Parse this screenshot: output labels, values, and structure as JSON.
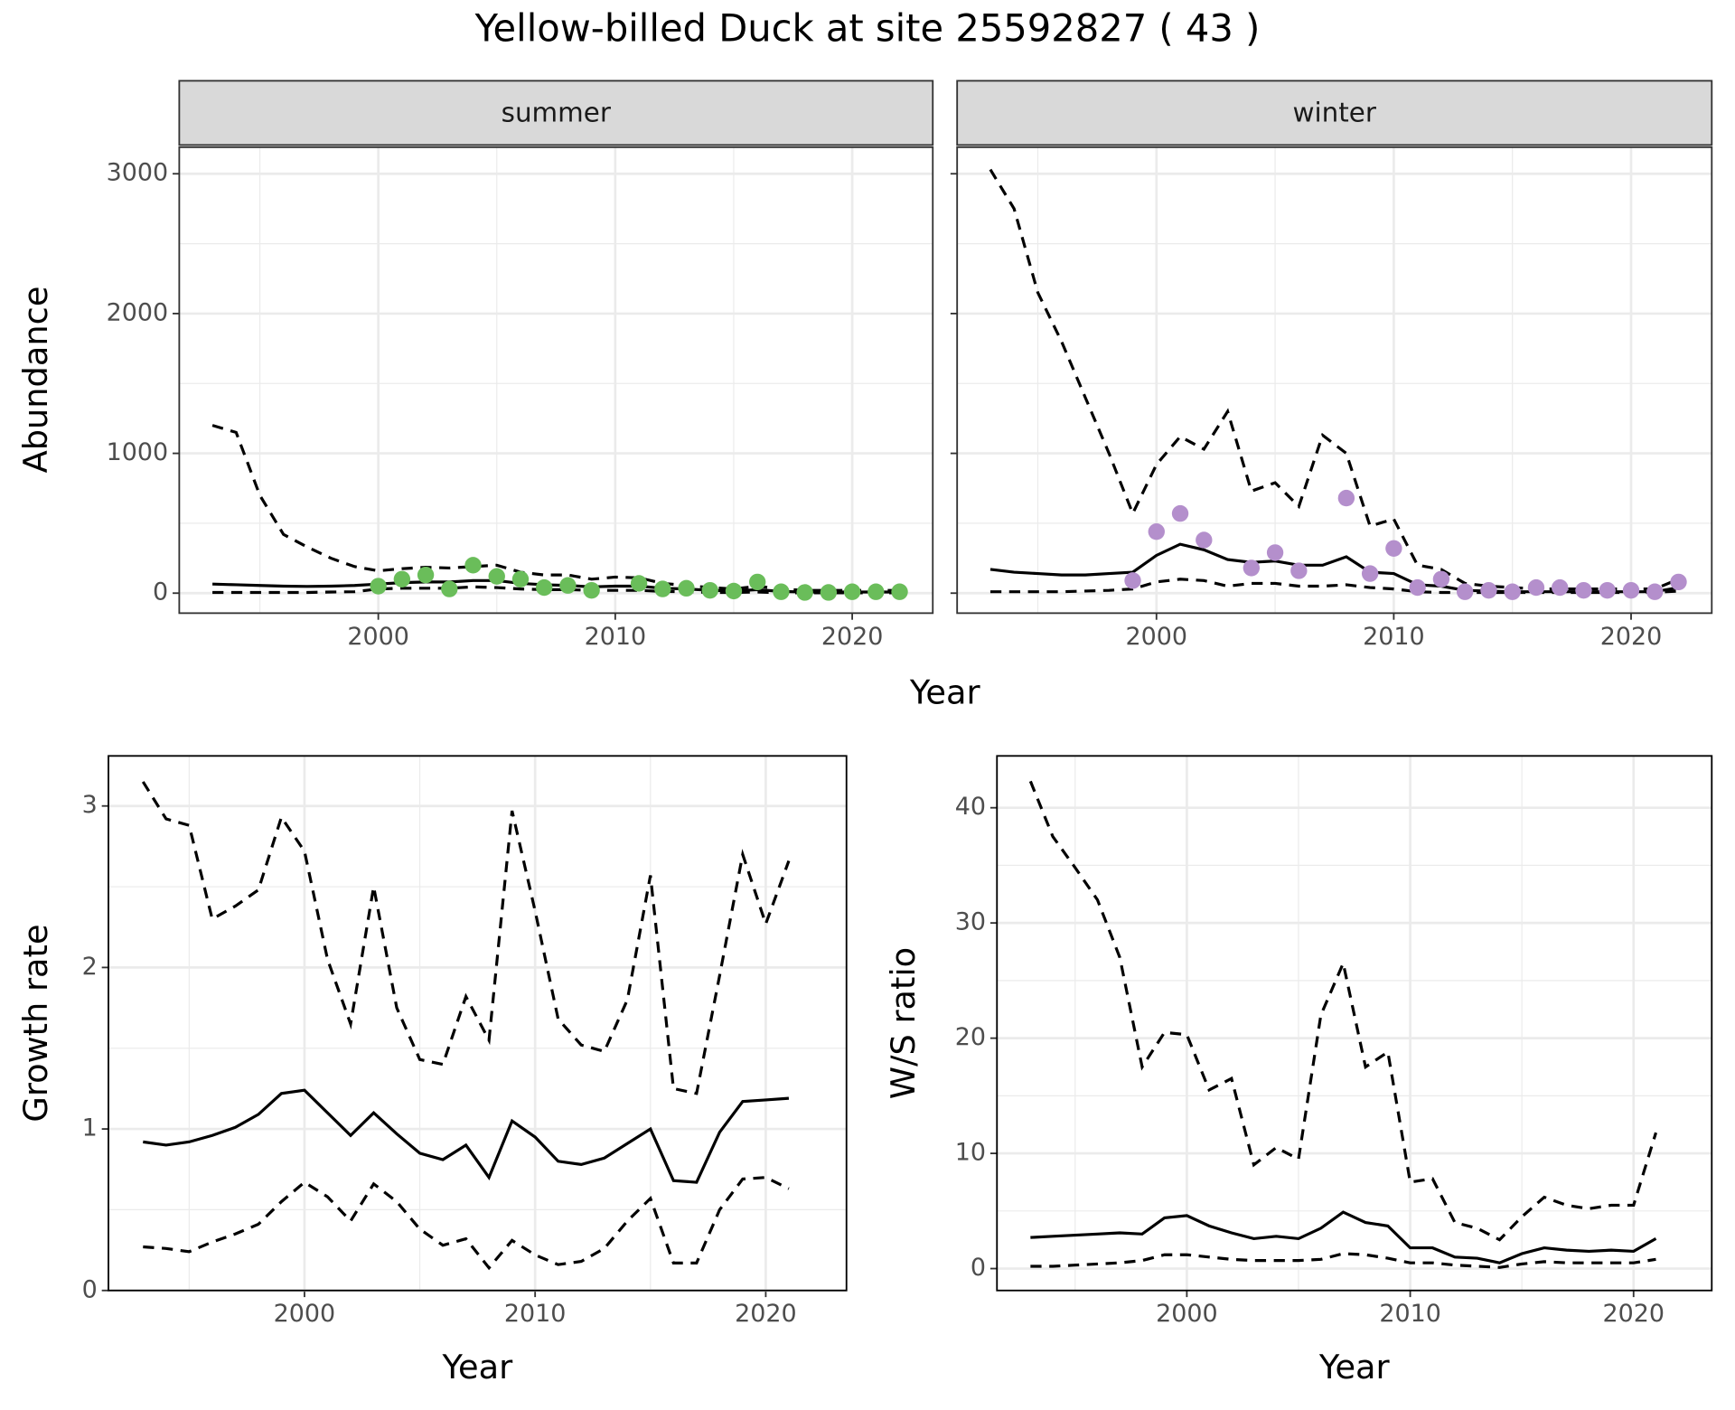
{
  "title": "Yellow-billed Duck at site 25592827 ( 43 )",
  "chart_data": [
    {
      "type": "line",
      "x_label": "Year",
      "y_label": "Abundance",
      "x": [
        1993,
        1994,
        1995,
        1996,
        1997,
        1998,
        1999,
        2000,
        2001,
        2002,
        2003,
        2004,
        2005,
        2006,
        2007,
        2008,
        2009,
        2010,
        2011,
        2012,
        2013,
        2014,
        2015,
        2016,
        2017,
        2018,
        2019,
        2020,
        2021,
        2022
      ],
      "xlim": [
        1991.6,
        2023.4
      ],
      "ylim": [
        -143,
        3190
      ],
      "xticks": [
        2000,
        2010,
        2020
      ],
      "yticks": [
        0,
        1000,
        2000,
        3000
      ],
      "grid": true,
      "panels": [
        {
          "strip": "summer",
          "series": [
            {
              "style": "dashed",
              "color": "#000000",
              "values": [
                1200,
                1150,
                700,
                420,
                330,
                250,
                190,
                160,
                175,
                185,
                180,
                190,
                200,
                150,
                130,
                130,
                100,
                115,
                110,
                70,
                55,
                40,
                30,
                50,
                30,
                20,
                20,
                20,
                20,
                20
              ]
            },
            {
              "style": "solid",
              "color": "#000000",
              "values": [
                65,
                60,
                55,
                50,
                48,
                50,
                55,
                65,
                75,
                80,
                80,
                90,
                90,
                70,
                60,
                55,
                45,
                50,
                50,
                35,
                30,
                20,
                15,
                25,
                12,
                8,
                8,
                8,
                8,
                8
              ]
            },
            {
              "style": "dashed",
              "color": "#000000",
              "values": [
                5,
                5,
                5,
                5,
                5,
                8,
                10,
                30,
                35,
                35,
                35,
                45,
                40,
                30,
                25,
                25,
                20,
                20,
                20,
                12,
                10,
                5,
                5,
                8,
                3,
                2,
                2,
                2,
                2,
                2
              ]
            }
          ],
          "points": {
            "color": "#6abd5a",
            "x": [
              2000,
              2001,
              2002,
              2003,
              2004,
              2005,
              2006,
              2007,
              2008,
              2009,
              2011,
              2012,
              2013,
              2014,
              2015,
              2016,
              2017,
              2018,
              2019,
              2020,
              2021,
              2022
            ],
            "values": [
              50,
              100,
              130,
              30,
              200,
              120,
              100,
              40,
              55,
              20,
              70,
              30,
              35,
              20,
              15,
              80,
              10,
              5,
              5,
              10,
              10,
              10
            ]
          }
        },
        {
          "strip": "winter",
          "series": [
            {
              "style": "dashed",
              "color": "#000000",
              "values": [
                3030,
                2750,
                2150,
                1800,
                1400,
                1000,
                570,
                920,
                1120,
                1030,
                1300,
                730,
                790,
                620,
                1130,
                1000,
                480,
                530,
                200,
                170,
                70,
                50,
                40,
                30,
                30,
                30,
                30,
                30,
                30,
                100
              ]
            },
            {
              "style": "solid",
              "color": "#000000",
              "values": [
                170,
                150,
                140,
                130,
                130,
                140,
                150,
                270,
                350,
                310,
                240,
                220,
                230,
                200,
                200,
                260,
                150,
                140,
                60,
                50,
                20,
                15,
                10,
                10,
                10,
                10,
                10,
                10,
                10,
                40
              ]
            },
            {
              "style": "dashed",
              "color": "#000000",
              "values": [
                10,
                10,
                10,
                10,
                15,
                20,
                30,
                80,
                100,
                90,
                50,
                70,
                70,
                50,
                50,
                60,
                40,
                30,
                10,
                5,
                5,
                5,
                5,
                5,
                5,
                5,
                5,
                5,
                5,
                15
              ]
            }
          ],
          "points": {
            "color": "#b48fcc",
            "x": [
              1999,
              2000,
              2001,
              2002,
              2004,
              2005,
              2006,
              2008,
              2009,
              2010,
              2011,
              2012,
              2013,
              2014,
              2015,
              2016,
              2017,
              2018,
              2019,
              2020,
              2021,
              2022
            ],
            "values": [
              90,
              440,
              570,
              380,
              180,
              290,
              160,
              680,
              140,
              320,
              40,
              100,
              10,
              20,
              10,
              40,
              40,
              20,
              20,
              20,
              10,
              80
            ]
          }
        }
      ]
    },
    {
      "type": "line",
      "x_label": "Year",
      "y_label": "Growth rate",
      "x": [
        1993,
        1994,
        1995,
        1996,
        1997,
        1998,
        1999,
        2000,
        2001,
        2002,
        2003,
        2004,
        2005,
        2006,
        2007,
        2008,
        2009,
        2010,
        2011,
        2012,
        2013,
        2014,
        2015,
        2016,
        2017,
        2018,
        2019,
        2020,
        2021
      ],
      "xlim": [
        1991.5,
        2023.5
      ],
      "ylim": [
        0,
        3.31
      ],
      "xticks": [
        2000,
        2010,
        2020
      ],
      "yticks": [
        0,
        1,
        2,
        3
      ],
      "grid": true,
      "series": [
        {
          "style": "dashed",
          "color": "#000000",
          "values": [
            3.15,
            2.92,
            2.88,
            2.3,
            2.38,
            2.48,
            2.93,
            2.72,
            2.05,
            1.65,
            2.5,
            1.75,
            1.43,
            1.4,
            1.82,
            1.55,
            2.97,
            2.35,
            1.68,
            1.52,
            1.48,
            1.8,
            2.57,
            1.25,
            1.22,
            1.95,
            2.7,
            2.27,
            2.66
          ]
        },
        {
          "style": "solid",
          "color": "#000000",
          "values": [
            0.92,
            0.9,
            0.92,
            0.96,
            1.01,
            1.09,
            1.22,
            1.24,
            1.1,
            0.96,
            1.1,
            0.97,
            0.85,
            0.81,
            0.9,
            0.7,
            1.05,
            0.95,
            0.8,
            0.78,
            0.82,
            0.91,
            1.0,
            0.68,
            0.67,
            0.98,
            1.17,
            1.18,
            1.19
          ]
        },
        {
          "style": "dashed",
          "color": "#000000",
          "values": [
            0.27,
            0.26,
            0.24,
            0.3,
            0.35,
            0.41,
            0.55,
            0.67,
            0.58,
            0.43,
            0.66,
            0.55,
            0.38,
            0.28,
            0.32,
            0.14,
            0.31,
            0.22,
            0.16,
            0.18,
            0.26,
            0.43,
            0.57,
            0.17,
            0.17,
            0.5,
            0.69,
            0.7,
            0.63
          ]
        }
      ]
    },
    {
      "type": "line",
      "x_label": "Year",
      "y_label": "W/S ratio",
      "x": [
        1993,
        1994,
        1995,
        1996,
        1997,
        1998,
        1999,
        2000,
        2001,
        2002,
        2003,
        2004,
        2005,
        2006,
        2007,
        2008,
        2009,
        2010,
        2011,
        2012,
        2013,
        2014,
        2015,
        2016,
        2017,
        2018,
        2019,
        2020,
        2021
      ],
      "xlim": [
        1991.5,
        2023.5
      ],
      "ylim": [
        -1.9,
        44.5
      ],
      "xticks": [
        2000,
        2010,
        2020
      ],
      "yticks": [
        0,
        10,
        20,
        30,
        40
      ],
      "grid": true,
      "series": [
        {
          "style": "dashed",
          "color": "#000000",
          "values": [
            42.3,
            37.5,
            34.8,
            32,
            27,
            17.5,
            20.5,
            20.3,
            15.5,
            16.5,
            9,
            10.5,
            9.5,
            22,
            26.5,
            17.5,
            18.8,
            7.5,
            7.8,
            4,
            3.5,
            2.5,
            4.5,
            6.2,
            5.5,
            5.2,
            5.5,
            5.5,
            11.8
          ]
        },
        {
          "style": "solid",
          "color": "#000000",
          "values": [
            2.7,
            2.8,
            2.9,
            3.0,
            3.1,
            3.0,
            4.4,
            4.6,
            3.7,
            3.1,
            2.6,
            2.8,
            2.6,
            3.5,
            4.9,
            4.0,
            3.7,
            1.8,
            1.8,
            1.0,
            0.9,
            0.5,
            1.3,
            1.8,
            1.6,
            1.5,
            1.6,
            1.5,
            2.6
          ]
        },
        {
          "style": "dashed",
          "color": "#000000",
          "values": [
            0.2,
            0.2,
            0.3,
            0.4,
            0.5,
            0.7,
            1.2,
            1.2,
            1.0,
            0.8,
            0.7,
            0.7,
            0.7,
            0.8,
            1.3,
            1.2,
            0.9,
            0.5,
            0.5,
            0.3,
            0.2,
            0.1,
            0.4,
            0.6,
            0.5,
            0.5,
            0.5,
            0.5,
            0.8
          ]
        }
      ]
    }
  ]
}
